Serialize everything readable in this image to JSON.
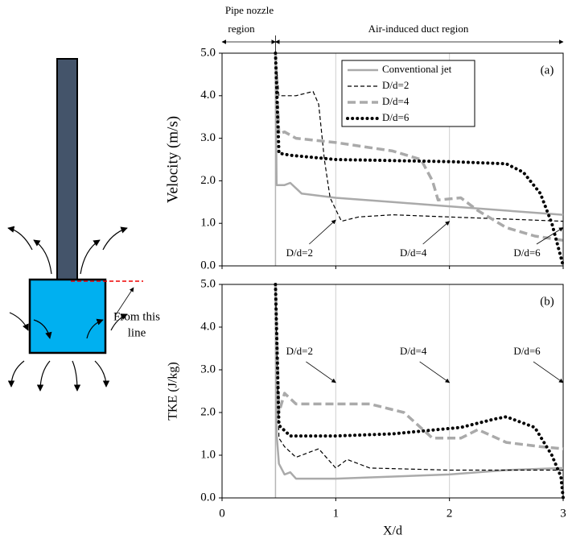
{
  "header": {
    "pipe_region": [
      "Pipe nozzle",
      "region"
    ],
    "duct_region": "Air-induced duct region"
  },
  "diagram": {
    "label": [
      "From this",
      "line"
    ]
  },
  "region_boundary": 0.47,
  "chart_data": [
    {
      "type": "line",
      "panel": "(a)",
      "ylabel": "Velocity (m/s)",
      "xlim": [
        0,
        3
      ],
      "xticks": [
        0,
        1,
        2,
        3
      ],
      "ylim": [
        0,
        5
      ],
      "yticks": [
        {
          "value": 0,
          "label": "0.0"
        },
        {
          "value": 1,
          "label": "1.0"
        },
        {
          "value": 2,
          "label": "2.0"
        },
        {
          "value": 3,
          "label": "3.0"
        },
        {
          "value": 4,
          "label": "4.0"
        },
        {
          "value": 5,
          "label": "5.0"
        }
      ],
      "grid": true,
      "legend": "top-right",
      "series": [
        {
          "name": "Conventional jet",
          "color": "#aaaaaa",
          "style": "solid",
          "width": 2.5,
          "x": [
            0.47,
            0.48,
            0.55,
            0.6,
            0.7,
            1.0,
            1.5,
            2.0,
            2.5,
            3.0
          ],
          "values": [
            5.0,
            1.9,
            1.9,
            1.95,
            1.7,
            1.6,
            1.5,
            1.4,
            1.3,
            1.2
          ]
        },
        {
          "name": "D/d=2",
          "color": "#000000",
          "style": "dashed",
          "width": 1.2,
          "x": [
            0.47,
            0.5,
            0.65,
            0.8,
            0.85,
            0.9,
            0.95,
            1.05,
            1.2,
            1.5,
            2.0,
            2.5,
            3.0
          ],
          "values": [
            5.0,
            4.0,
            4.0,
            4.1,
            3.8,
            2.5,
            1.6,
            1.05,
            1.15,
            1.2,
            1.15,
            1.1,
            1.05
          ]
        },
        {
          "name": "D/d=4",
          "color": "#aaaaaa",
          "style": "dashed",
          "width": 3.5,
          "x": [
            0.47,
            0.5,
            0.55,
            0.65,
            1.0,
            1.5,
            1.75,
            1.85,
            1.9,
            2.1,
            2.25,
            2.5,
            2.75,
            3.0
          ],
          "values": [
            5.0,
            3.1,
            3.15,
            3.0,
            2.9,
            2.7,
            2.5,
            2.0,
            1.55,
            1.6,
            1.3,
            0.9,
            0.7,
            0.6
          ]
        },
        {
          "name": "D/d=6",
          "color": "#000000",
          "style": "dotted",
          "width": 4,
          "x": [
            0.47,
            0.5,
            0.6,
            1.0,
            2.0,
            2.5,
            2.65,
            2.8,
            2.9,
            2.97,
            3.0
          ],
          "values": [
            5.0,
            2.65,
            2.6,
            2.5,
            2.45,
            2.4,
            2.2,
            1.7,
            1.0,
            0.3,
            0.0
          ]
        }
      ],
      "annotations": [
        {
          "text": "D/d=2",
          "x": 1.0,
          "y": 1.08
        },
        {
          "text": "D/d=4",
          "x": 2.0,
          "y": 1.05
        },
        {
          "text": "D/d=6",
          "x": 3.0,
          "y": 0.9
        }
      ]
    },
    {
      "type": "line",
      "panel": "(b)",
      "ylabel": "TKE (J/kg)",
      "xlabel": "X/d",
      "xlim": [
        0,
        3
      ],
      "xticks": [
        0,
        1,
        2,
        3
      ],
      "ylim": [
        0,
        5
      ],
      "yticks": [
        {
          "value": 0,
          "label": "0.0"
        },
        {
          "value": 1,
          "label": "1.0"
        },
        {
          "value": 2,
          "label": "2.0"
        },
        {
          "value": 3,
          "label": "3.0"
        },
        {
          "value": 4,
          "label": "4.0"
        },
        {
          "value": 5,
          "label": "5.0"
        }
      ],
      "grid": true,
      "series": [
        {
          "color": "#aaaaaa",
          "style": "solid",
          "width": 2.5,
          "x": [
            0.47,
            0.48,
            0.5,
            0.55,
            0.6,
            0.65,
            1.0,
            2.0,
            2.5,
            3.0
          ],
          "values": [
            5.0,
            1.5,
            0.8,
            0.55,
            0.6,
            0.45,
            0.45,
            0.55,
            0.65,
            0.7
          ]
        },
        {
          "color": "#000000",
          "style": "dashed",
          "width": 1.2,
          "x": [
            0.47,
            0.5,
            0.55,
            0.65,
            0.85,
            1.0,
            1.1,
            1.3,
            2.0,
            3.0
          ],
          "values": [
            5.0,
            1.4,
            1.2,
            0.95,
            1.15,
            0.7,
            0.9,
            0.7,
            0.65,
            0.65
          ]
        },
        {
          "color": "#aaaaaa",
          "style": "dashed",
          "width": 3.5,
          "x": [
            0.47,
            0.5,
            0.55,
            0.65,
            1.0,
            1.3,
            1.6,
            1.85,
            2.1,
            2.25,
            2.5,
            2.8,
            3.0
          ],
          "values": [
            5.0,
            2.0,
            2.45,
            2.2,
            2.2,
            2.2,
            2.0,
            1.4,
            1.4,
            1.6,
            1.3,
            1.2,
            1.15
          ]
        },
        {
          "color": "#000000",
          "style": "dotted",
          "width": 4,
          "x": [
            0.47,
            0.5,
            0.6,
            1.0,
            1.5,
            2.1,
            2.4,
            2.5,
            2.75,
            2.9,
            2.98,
            3.0
          ],
          "values": [
            5.0,
            1.7,
            1.45,
            1.45,
            1.5,
            1.65,
            1.85,
            1.9,
            1.65,
            1.0,
            0.5,
            0.0
          ]
        }
      ],
      "annotations": [
        {
          "text": "D/d=2",
          "x": 1.0,
          "y": 2.7
        },
        {
          "text": "D/d=4",
          "x": 2.0,
          "y": 2.7
        },
        {
          "text": "D/d=6",
          "x": 3.0,
          "y": 2.7
        }
      ]
    }
  ]
}
